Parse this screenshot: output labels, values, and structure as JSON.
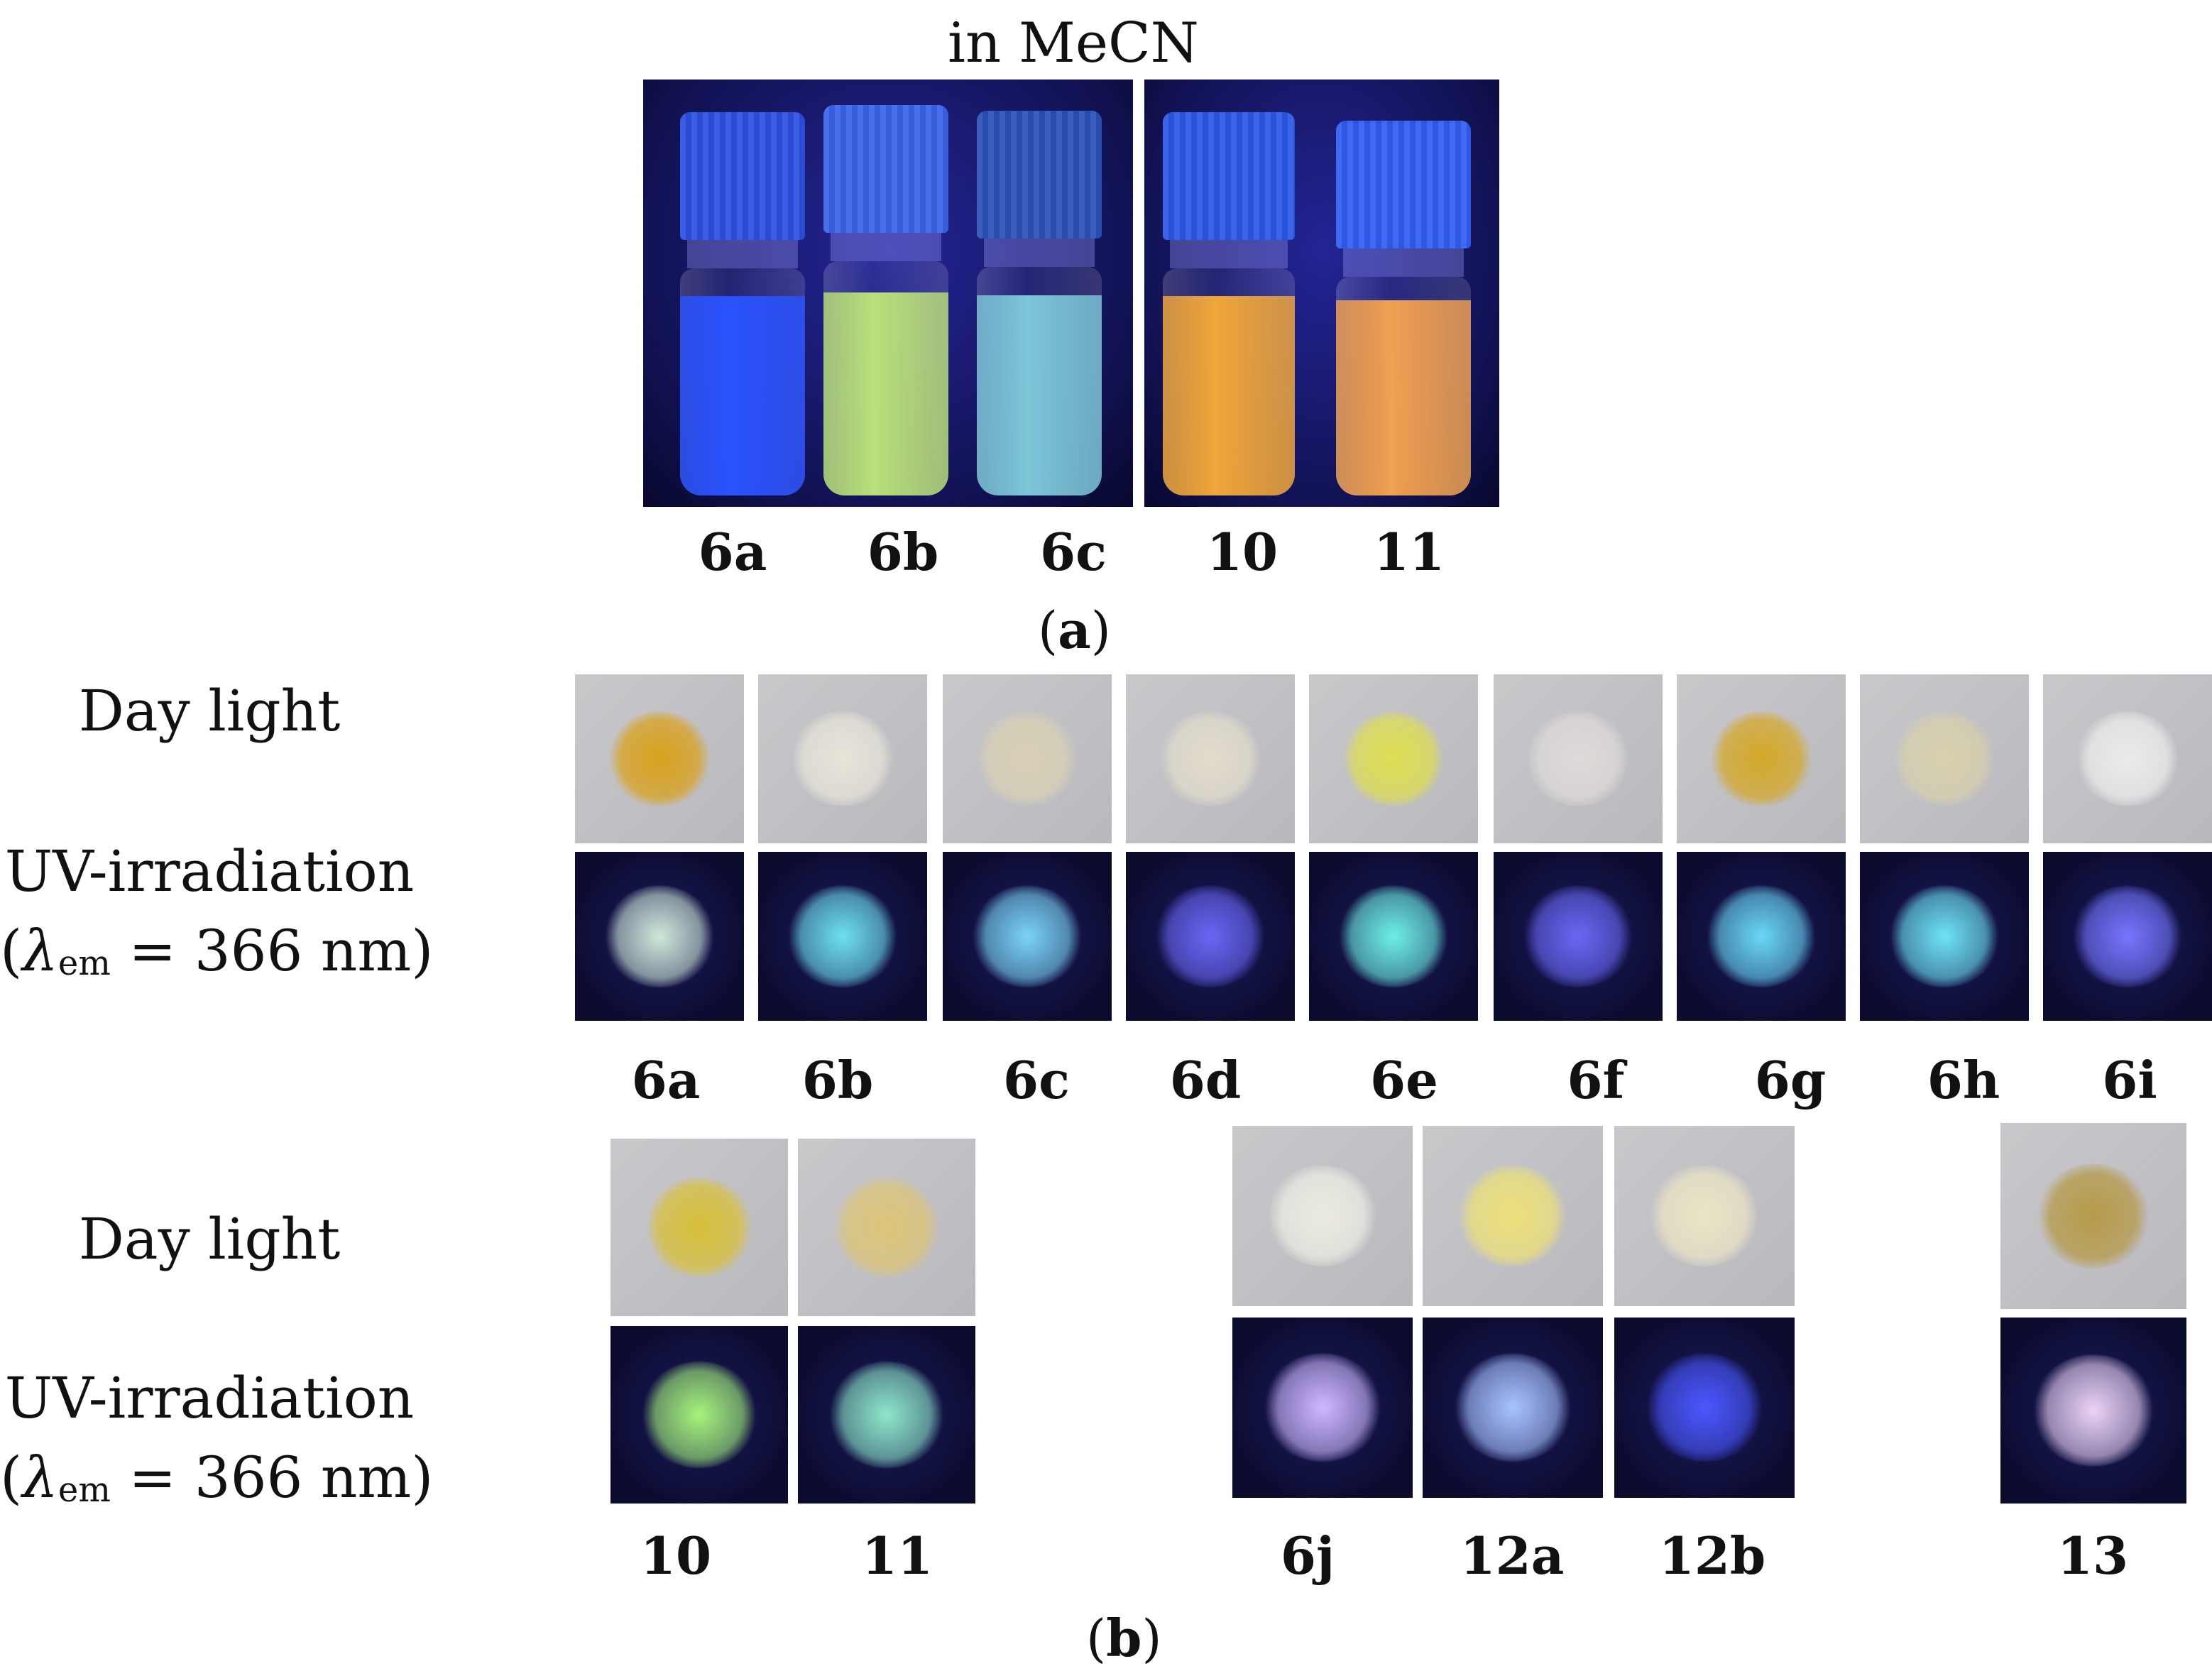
{
  "panel_a": {
    "title": "in MeCN",
    "caption": {
      "open": "(",
      "letter": "a",
      "close": ")"
    },
    "vials": [
      {
        "label": "6a",
        "liquid": "#2a52ff",
        "cap": "#2b4fe0"
      },
      {
        "label": "6b",
        "liquid": "#b9e07a",
        "cap": "#3a64e8"
      },
      {
        "label": "6c",
        "liquid": "#7cc6d8",
        "cap": "#2a4fb8"
      },
      {
        "label": "10",
        "liquid": "#f0a63a",
        "cap": "#2a56e6"
      },
      {
        "label": "11",
        "liquid": "#f0a050",
        "cap": "#2f5cf0"
      }
    ]
  },
  "panel_b": {
    "caption": {
      "open": "(",
      "letter": "b",
      "close": ")"
    },
    "row_labels": {
      "day": "Day light",
      "uv_line1": "UV-irradiation",
      "uv_open": "(",
      "lambda": "λ",
      "lambda_sub": "em",
      "uv_value": " = 366 nm)"
    },
    "top_samples": [
      {
        "label": "6a",
        "day": "#d9a21e",
        "uv": "#cfe8d8"
      },
      {
        "label": "6b",
        "day": "#e6e4d8",
        "uv": "#6ee0f0"
      },
      {
        "label": "6c",
        "day": "#d8d0b4",
        "uv": "#7ad4f4"
      },
      {
        "label": "6d",
        "day": "#e2dccc",
        "uv": "#6a66f4"
      },
      {
        "label": "6e",
        "day": "#dede52",
        "uv": "#6ef0e4"
      },
      {
        "label": "6f",
        "day": "#dedad8",
        "uv": "#6a68f4"
      },
      {
        "label": "6g",
        "day": "#d4a82a",
        "uv": "#6ad8f4"
      },
      {
        "label": "6h",
        "day": "#d8d0ac",
        "uv": "#6ee4f4"
      },
      {
        "label": "6i",
        "day": "#ecebea",
        "uv": "#7676ff"
      }
    ],
    "bottom_left": [
      {
        "label": "10",
        "day": "#d8c03a",
        "uv": "#a6f47a"
      },
      {
        "label": "11",
        "day": "#dcc478",
        "uv": "#8ee8c8"
      }
    ],
    "bottom_mid": [
      {
        "label": "6j",
        "day": "#ecebe2",
        "uv": "#d0b8ff"
      },
      {
        "label": "12a",
        "day": "#ede07a",
        "uv": "#a8c4ff"
      },
      {
        "label": "12b",
        "day": "#ebe4c4",
        "uv": "#4a58ff"
      }
    ],
    "bottom_right": [
      {
        "label": "13",
        "day": "#b59a48",
        "uv": "#ecd4f4"
      }
    ]
  }
}
